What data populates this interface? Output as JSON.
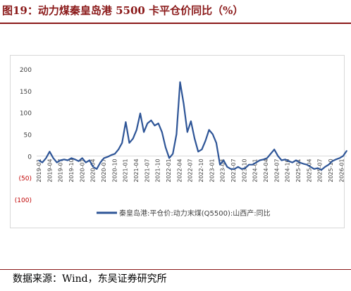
{
  "title": "图19：动力煤秦皇岛港 5500 卡平仓价同比（%）",
  "source": "数据来源：Wind，东吴证券研究所",
  "colors": {
    "title": "#8b1a1a",
    "line": "#2e5597",
    "negative_label": "#c00000",
    "axis": "#d9d9d9"
  },
  "chart_data": {
    "type": "line",
    "title": "",
    "xlabel": "",
    "ylabel": "",
    "ylim": [
      -100,
      200
    ],
    "yticks": [
      {
        "value": 200,
        "label": "200"
      },
      {
        "value": 150,
        "label": "150"
      },
      {
        "value": 100,
        "label": "100"
      },
      {
        "value": 50,
        "label": "50"
      },
      {
        "value": 0,
        "label": "0"
      },
      {
        "value": -50,
        "label": "(50)"
      },
      {
        "value": -100,
        "label": "(100)"
      }
    ],
    "xtick_labels": [
      "2019-01",
      "2019-04",
      "2019-07",
      "2019-10",
      "2020-01",
      "2020-04",
      "2020-07",
      "2020-10",
      "2021-01",
      "2021-04",
      "2021-07",
      "2021-10",
      "2022-01",
      "2022-04",
      "2022-07",
      "2022-10",
      "2023-01",
      "2023-04",
      "2023-07",
      "2023-10",
      "2024-01",
      "2024-04",
      "2024-07",
      "2024-10",
      "2025-01",
      "2025-04",
      "2025-07",
      "2025-10",
      "2026-01"
    ],
    "legend_position": "bottom",
    "series": [
      {
        "name": "秦皇岛港:平仓价:动力末煤(Q5500):山西产:同比",
        "x": [
          "2019-01",
          "2019-02",
          "2019-03",
          "2019-04",
          "2019-05",
          "2019-06",
          "2019-07",
          "2019-08",
          "2019-09",
          "2019-10",
          "2019-11",
          "2019-12",
          "2020-01",
          "2020-02",
          "2020-03",
          "2020-04",
          "2020-05",
          "2020-06",
          "2020-07",
          "2020-08",
          "2020-09",
          "2020-10",
          "2020-11",
          "2020-12",
          "2021-01",
          "2021-02",
          "2021-03",
          "2021-04",
          "2021-05",
          "2021-06",
          "2021-07",
          "2021-08",
          "2021-09",
          "2021-10",
          "2021-11",
          "2021-12",
          "2022-01",
          "2022-02",
          "2022-03",
          "2022-04",
          "2022-05",
          "2022-06",
          "2022-07",
          "2022-08",
          "2022-09",
          "2022-10",
          "2022-11",
          "2022-12",
          "2023-01",
          "2023-02",
          "2023-03",
          "2023-04",
          "2023-05",
          "2023-06",
          "2023-07",
          "2023-08",
          "2023-09",
          "2023-10",
          "2023-11",
          "2023-12",
          "2024-01",
          "2024-02",
          "2024-03",
          "2024-04",
          "2024-05",
          "2024-06",
          "2024-07",
          "2024-08",
          "2024-09",
          "2024-10",
          "2024-11",
          "2024-12",
          "2025-01",
          "2025-02",
          "2025-03",
          "2025-04",
          "2025-05",
          "2025-06",
          "2025-07",
          "2025-08",
          "2025-09",
          "2025-10",
          "2025-11",
          "2025-12",
          "2026-01",
          "2026-02"
        ],
        "values": [
          -10,
          -15,
          -5,
          10,
          -5,
          -15,
          -10,
          -8,
          -10,
          -5,
          -8,
          -12,
          -5,
          -15,
          -10,
          -25,
          -30,
          -15,
          -5,
          -2,
          2,
          5,
          15,
          30,
          78,
          30,
          40,
          60,
          98,
          55,
          75,
          82,
          70,
          75,
          55,
          20,
          -5,
          5,
          50,
          170,
          120,
          55,
          80,
          40,
          10,
          15,
          35,
          60,
          50,
          30,
          -20,
          -10,
          -25,
          -30,
          -30,
          -25,
          -30,
          -28,
          -20,
          -20,
          -15,
          -10,
          -8,
          -5,
          5,
          15,
          0,
          -10,
          -8,
          -12,
          -15,
          -10,
          -15,
          -18,
          -20,
          -25,
          -30,
          -28,
          -32,
          -25,
          -20,
          -12,
          -8,
          -5,
          0,
          12
        ]
      }
    ]
  }
}
